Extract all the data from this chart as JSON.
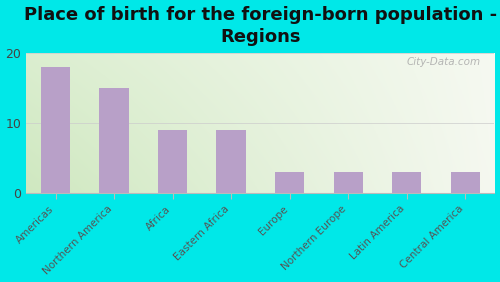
{
  "title": "Place of birth for the foreign-born population -\nRegions",
  "categories": [
    "Americas",
    "Northern America",
    "Africa",
    "Eastern Africa",
    "Europe",
    "Northern Europe",
    "Latin America",
    "Central America"
  ],
  "values": [
    18,
    15,
    9,
    9,
    3,
    3,
    3,
    3
  ],
  "bar_color": "#b8a0c8",
  "background_outer": "#00e8e8",
  "ylim": [
    0,
    20
  ],
  "yticks": [
    0,
    10,
    20
  ],
  "watermark": "City-Data.com",
  "title_fontsize": 13,
  "tick_label_fontsize": 7.5,
  "gradient_left": "#cfe8c0",
  "gradient_right": "#f5f8f0"
}
